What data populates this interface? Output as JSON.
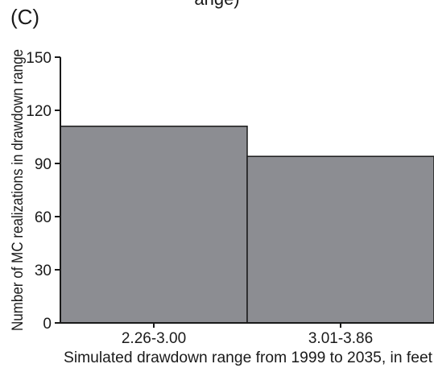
{
  "figure": {
    "panel_label": "(C)",
    "clipped_top_text": "ange)"
  },
  "chart_data": {
    "type": "bar",
    "categories": [
      "2.26-3.00",
      "3.01-3.86"
    ],
    "values": [
      111,
      94
    ],
    "xlabel": "Simulated drawdown range from 1999 to 2035, in feet",
    "ylabel": "Number of MC realizations in drawdown range",
    "ylim": [
      0,
      150
    ],
    "yticks": [
      0,
      30,
      60,
      90,
      120,
      150
    ],
    "grid": false,
    "bar_color": "#8c8d92",
    "edge_color": "#1a1a1a"
  }
}
